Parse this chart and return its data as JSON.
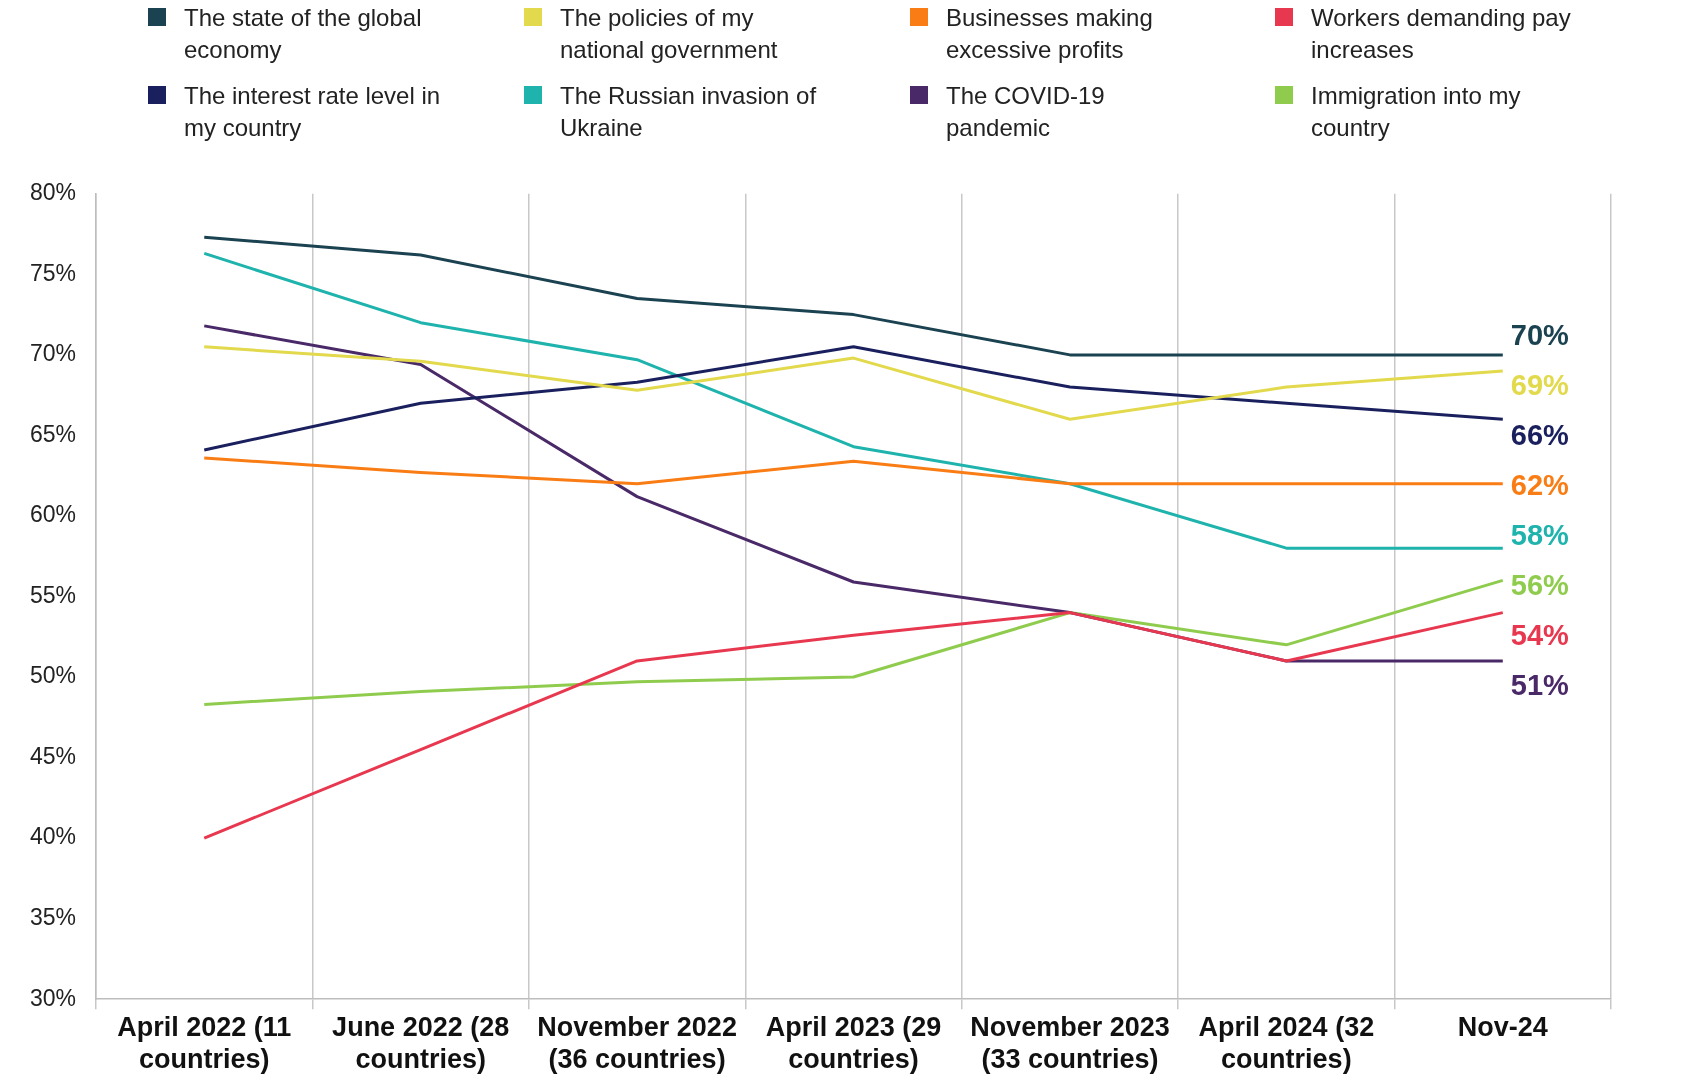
{
  "chart_data": {
    "type": "line",
    "categories": [
      "April 2022 (11 countries)",
      "June 2022 (28 countries)",
      "November 2022 (36 countries)",
      "April 2023 (29 countries)",
      "November 2023 (33 countries)",
      "April 2024 (32 countries)",
      "Nov-24"
    ],
    "ylim": [
      30,
      80
    ],
    "yticks": [
      {
        "value": 30,
        "label": "30%"
      },
      {
        "value": 35,
        "label": "35%"
      },
      {
        "value": 40,
        "label": "40%"
      },
      {
        "value": 45,
        "label": "45%"
      },
      {
        "value": 50,
        "label": "50%"
      },
      {
        "value": 55,
        "label": "55%"
      },
      {
        "value": 60,
        "label": "60%"
      },
      {
        "value": 65,
        "label": "65%"
      },
      {
        "value": 70,
        "label": "70%"
      },
      {
        "value": 75,
        "label": "75%"
      },
      {
        "value": 80,
        "label": "80%"
      }
    ],
    "grid": "x",
    "legend": "top",
    "marker": "none",
    "series": [
      {
        "name": "The state of the global economy",
        "color": "#1b4250",
        "values": [
          77.3,
          76.2,
          73.5,
          72.5,
          70,
          70,
          70
        ],
        "value_labels": [
          null,
          null,
          null,
          null,
          null,
          null,
          "70%"
        ]
      },
      {
        "name": "The policies of my national government",
        "color": "#e2d94c",
        "values": [
          70.5,
          69.6,
          67.8,
          69.8,
          66,
          68,
          69
        ],
        "value_labels": [
          null,
          null,
          null,
          null,
          null,
          null,
          "69%"
        ]
      },
      {
        "name": "Businesses making excessive profits",
        "color": "#f97d14",
        "values": [
          63.6,
          62.7,
          62,
          63.4,
          62,
          62,
          62
        ],
        "value_labels": [
          null,
          null,
          null,
          null,
          null,
          null,
          "62%"
        ]
      },
      {
        "name": "Workers demanding pay increases",
        "color": "#e8384f",
        "values": [
          40,
          45.5,
          51,
          52.6,
          54,
          51,
          54
        ],
        "value_labels": [
          null,
          null,
          null,
          null,
          null,
          null,
          "54%"
        ]
      },
      {
        "name": "The interest rate level in my country",
        "color": "#1a1f5e",
        "values": [
          64.1,
          67,
          68.3,
          70.5,
          68,
          67,
          66
        ],
        "value_labels": [
          null,
          null,
          null,
          null,
          null,
          null,
          "66%"
        ]
      },
      {
        "name": "The Russian invasion of Ukraine",
        "color": "#1fb3ad",
        "values": [
          76.3,
          72,
          69.7,
          64.3,
          62,
          58,
          58
        ],
        "value_labels": [
          null,
          null,
          null,
          null,
          null,
          null,
          "58%"
        ]
      },
      {
        "name": "The COVID-19 pandemic",
        "color": "#4a2968",
        "values": [
          71.8,
          69.4,
          61.2,
          55.9,
          54,
          51,
          51
        ],
        "value_labels": [
          null,
          null,
          null,
          null,
          null,
          null,
          "51%"
        ]
      },
      {
        "name": "Immigration into my country",
        "color": "#8fcc4e",
        "values": [
          48.3,
          49.1,
          49.7,
          50,
          54,
          52,
          56
        ],
        "value_labels": [
          null,
          null,
          null,
          null,
          null,
          null,
          "56%"
        ]
      }
    ]
  }
}
